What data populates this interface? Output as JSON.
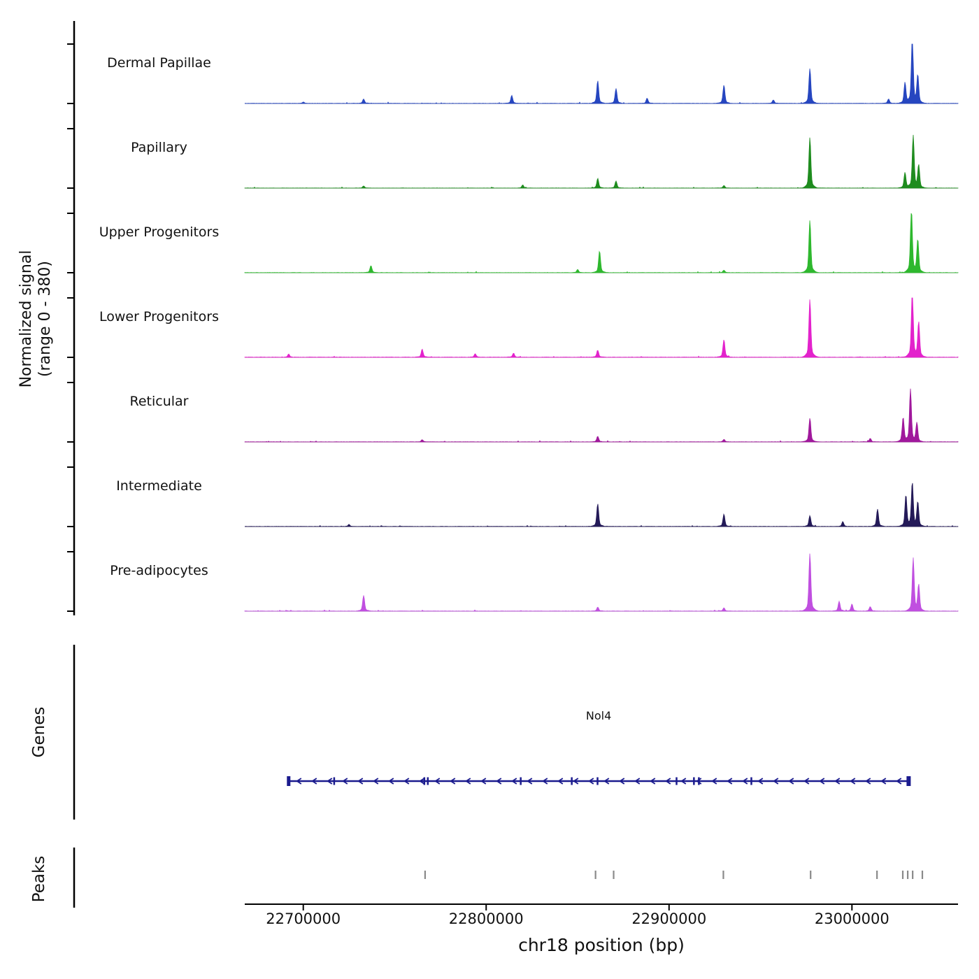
{
  "figure": {
    "ylabel_line1": "Normalized signal",
    "ylabel_line2": "(range 0 - 380)",
    "genes_section_label": "Genes",
    "peaks_section_label": "Peaks",
    "xaxis_title": "chr18 position (bp)"
  },
  "chart_data": {
    "type": "area",
    "title": "",
    "xlabel": "chr18 position (bp)",
    "ylabel": "Normalized signal (range 0 - 380)",
    "xlim": [
      22668000,
      23058000
    ],
    "ylim_per_track": [
      0,
      380
    ],
    "x_ticks": [
      22700000,
      22800000,
      22900000,
      23000000
    ],
    "x_tick_labels": [
      "22700000",
      "22800000",
      "22900000",
      "23000000"
    ],
    "grid": false,
    "legend": "none",
    "tracks": [
      {
        "name": "Dermal Papillae",
        "color": "#2646c0",
        "noise": 2.0,
        "peaks": [
          [
            22700000,
            8
          ],
          [
            22733000,
            25
          ],
          [
            22814000,
            45
          ],
          [
            22861000,
            130
          ],
          [
            22871000,
            85
          ],
          [
            22888000,
            30
          ],
          [
            22930000,
            105
          ],
          [
            22957000,
            20
          ],
          [
            22977000,
            200
          ],
          [
            23020000,
            25
          ],
          [
            23029000,
            120
          ],
          [
            23033000,
            375
          ],
          [
            23036000,
            160
          ]
        ]
      },
      {
        "name": "Papillary",
        "color": "#1e8c1e",
        "noise": 1.2,
        "peaks": [
          [
            22733000,
            12
          ],
          [
            22820000,
            18
          ],
          [
            22861000,
            55
          ],
          [
            22871000,
            40
          ],
          [
            22930000,
            15
          ],
          [
            22977000,
            290
          ],
          [
            23029000,
            90
          ],
          [
            23033500,
            300
          ],
          [
            23036500,
            130
          ]
        ]
      },
      {
        "name": "Upper Progenitors",
        "color": "#2eb82e",
        "noise": 1.5,
        "peaks": [
          [
            22737000,
            40
          ],
          [
            22850000,
            18
          ],
          [
            22862000,
            125
          ],
          [
            22930000,
            14
          ],
          [
            22977000,
            300
          ],
          [
            23032500,
            370
          ],
          [
            23036000,
            190
          ]
        ]
      },
      {
        "name": "Lower Progenitors",
        "color": "#e322cc",
        "noise": 2.5,
        "peaks": [
          [
            22692000,
            18
          ],
          [
            22765000,
            45
          ],
          [
            22794000,
            20
          ],
          [
            22815000,
            22
          ],
          [
            22861000,
            40
          ],
          [
            22930000,
            100
          ],
          [
            22977000,
            330
          ],
          [
            23033000,
            380
          ],
          [
            23036500,
            200
          ]
        ]
      },
      {
        "name": "Reticular",
        "color": "#a0189c",
        "noise": 1.8,
        "peaks": [
          [
            22765000,
            12
          ],
          [
            22861000,
            32
          ],
          [
            22930000,
            14
          ],
          [
            22977000,
            135
          ],
          [
            23010000,
            20
          ],
          [
            23028000,
            140
          ],
          [
            23032000,
            300
          ],
          [
            23035500,
            110
          ]
        ]
      },
      {
        "name": "Intermediate",
        "color": "#241a58",
        "noise": 2.0,
        "peaks": [
          [
            22725000,
            12
          ],
          [
            22861000,
            130
          ],
          [
            22930000,
            70
          ],
          [
            22977000,
            62
          ],
          [
            22995000,
            28
          ],
          [
            23014000,
            100
          ],
          [
            23029500,
            180
          ],
          [
            23033000,
            250
          ],
          [
            23036000,
            140
          ]
        ]
      },
      {
        "name": "Pre-adipocytes",
        "color": "#c04fe0",
        "noise": 2.0,
        "peaks": [
          [
            22733000,
            90
          ],
          [
            22861000,
            22
          ],
          [
            22930000,
            18
          ],
          [
            22977000,
            330
          ],
          [
            22993000,
            55
          ],
          [
            23000000,
            40
          ],
          [
            23010000,
            25
          ],
          [
            23033500,
            300
          ],
          [
            23036500,
            150
          ]
        ]
      }
    ],
    "gene": {
      "name": "Nol4",
      "strand": "-",
      "start": 22692000,
      "end": 23031000,
      "color": "#1b1b8e",
      "exons": [
        22716900,
        22766200,
        22768100,
        22818900,
        22846800,
        22860900,
        22904100,
        22913600,
        22916300,
        22945000
      ]
    },
    "peaks_track": {
      "color": "#8a8a8a",
      "positions": [
        22766600,
        22859800,
        22869700,
        22929700,
        22977400,
        23013700,
        23027800,
        23030500,
        23033200,
        23038500
      ]
    }
  }
}
